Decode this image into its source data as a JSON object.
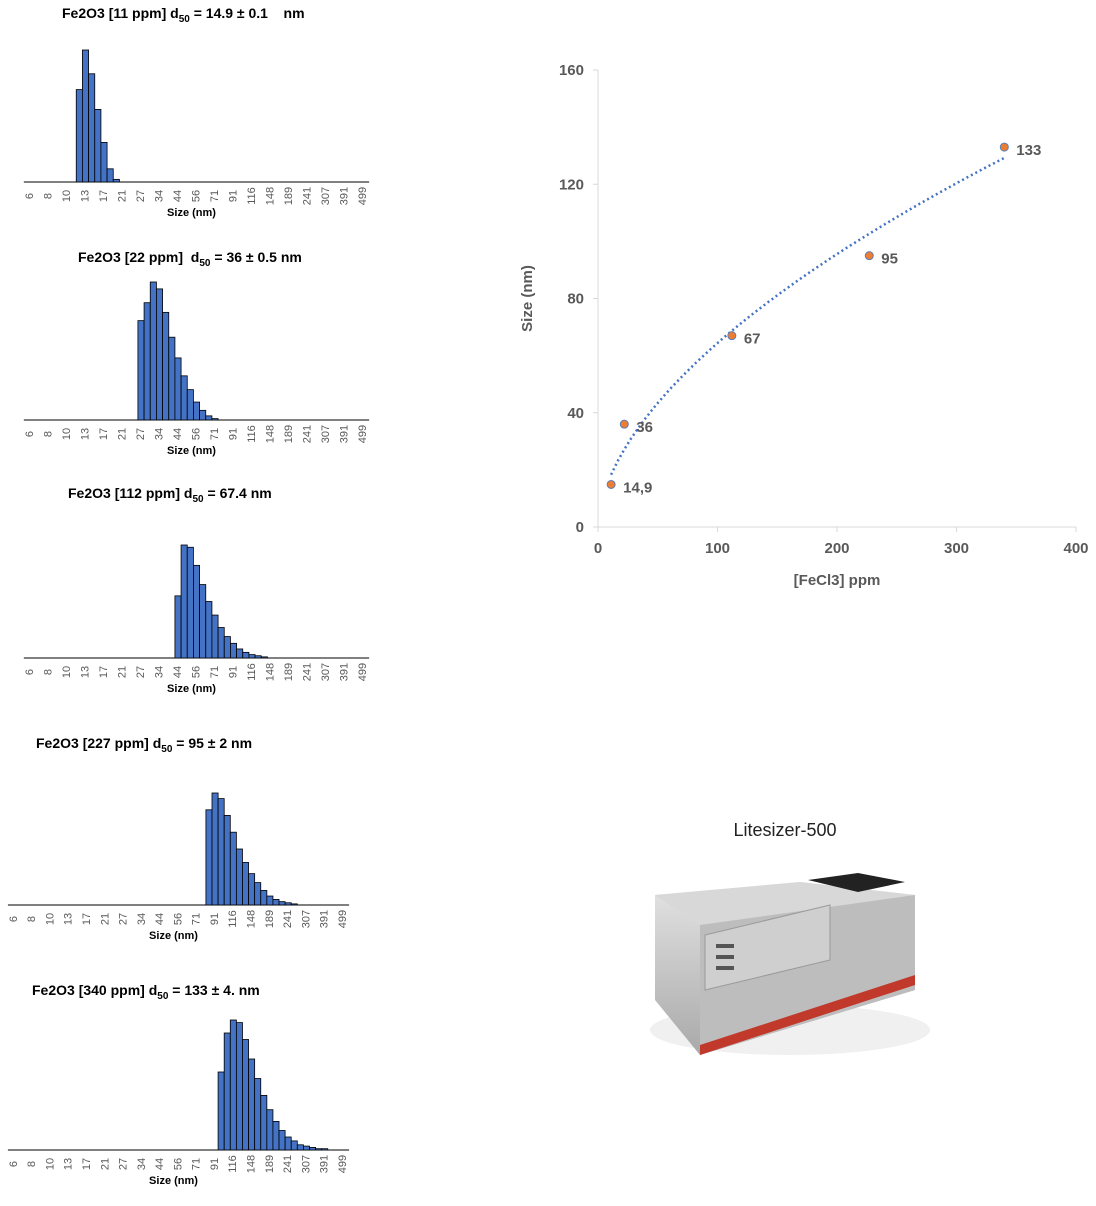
{
  "chart_data": [
    {
      "type": "bar",
      "title": "Fe2O3 [11 ppm] d",
      "title_subscript": "50",
      "title_end": " = 14.9 ± 0.1    nm",
      "xlabel": "Size (nm)",
      "color": "#4472c4",
      "categories": [
        "6",
        null,
        null,
        "8",
        null,
        null,
        "10",
        null,
        null,
        "13",
        null,
        null,
        "17",
        null,
        null,
        "21",
        null,
        null,
        "27",
        null,
        null,
        "34",
        null,
        null,
        "44",
        null,
        null,
        "56",
        null,
        null,
        "71",
        null,
        null,
        "91",
        null,
        null,
        "116",
        null,
        null,
        "148",
        null,
        null,
        "189",
        null,
        null,
        "241",
        null,
        null,
        "307",
        null,
        null,
        "391",
        null,
        null,
        "499"
      ],
      "values": [
        0,
        0,
        0,
        0,
        0,
        0,
        0,
        0,
        70,
        100,
        82,
        55,
        30,
        10,
        2,
        0,
        0,
        0,
        0,
        0,
        0,
        0,
        0,
        0,
        0,
        0,
        0,
        0,
        0,
        0,
        0,
        0,
        0,
        0,
        0,
        0,
        0,
        0,
        0,
        0,
        0,
        0,
        0,
        0,
        0,
        0,
        0,
        0,
        0,
        0,
        0,
        0,
        0,
        0,
        0
      ]
    },
    {
      "type": "bar",
      "title": "Fe2O3 [22 ppm]  d",
      "title_subscript": "50",
      "title_end": " = 36 ± 0.5 nm",
      "xlabel": "Size (nm)",
      "color": "#4472c4",
      "categories": [
        "6",
        null,
        null,
        "8",
        null,
        null,
        "10",
        null,
        null,
        "13",
        null,
        null,
        "17",
        null,
        null,
        "21",
        null,
        null,
        "27",
        null,
        null,
        "34",
        null,
        null,
        "44",
        null,
        null,
        "56",
        null,
        null,
        "71",
        null,
        null,
        "91",
        null,
        null,
        "116",
        null,
        null,
        "148",
        null,
        null,
        "189",
        null,
        null,
        "241",
        null,
        null,
        "307",
        null,
        null,
        "391",
        null,
        null,
        "499"
      ],
      "values": [
        0,
        0,
        0,
        0,
        0,
        0,
        0,
        0,
        0,
        0,
        0,
        0,
        0,
        0,
        0,
        0,
        0,
        0,
        72,
        85,
        100,
        95,
        78,
        60,
        45,
        32,
        22,
        13,
        7,
        3,
        1,
        0,
        0,
        0,
        0,
        0,
        0,
        0,
        0,
        0,
        0,
        0,
        0,
        0,
        0,
        0,
        0,
        0,
        0,
        0,
        0,
        0,
        0,
        0,
        0
      ]
    },
    {
      "type": "bar",
      "title": "Fe2O3 [112 ppm] d",
      "title_subscript": "50",
      "title_end": " = 67.4 nm",
      "xlabel": "Size (nm)",
      "color": "#4472c4",
      "categories": [
        "6",
        null,
        null,
        "8",
        null,
        null,
        "10",
        null,
        null,
        "13",
        null,
        null,
        "17",
        null,
        null,
        "21",
        null,
        null,
        "27",
        null,
        null,
        "34",
        null,
        null,
        "44",
        null,
        null,
        "56",
        null,
        null,
        "71",
        null,
        null,
        "91",
        null,
        null,
        "116",
        null,
        null,
        "148",
        null,
        null,
        "189",
        null,
        null,
        "241",
        null,
        null,
        "307",
        null,
        null,
        "391",
        null,
        null,
        "499"
      ],
      "values": [
        0,
        0,
        0,
        0,
        0,
        0,
        0,
        0,
        0,
        0,
        0,
        0,
        0,
        0,
        0,
        0,
        0,
        0,
        0,
        0,
        0,
        0,
        0,
        0,
        55,
        100,
        98,
        82,
        65,
        50,
        38,
        27,
        19,
        13,
        8,
        5,
        3,
        2,
        1,
        0,
        0,
        0,
        0,
        0,
        0,
        0,
        0,
        0,
        0,
        0,
        0,
        0,
        0,
        0,
        0
      ]
    },
    {
      "type": "bar",
      "title": "Fe2O3 [227 ppm] d",
      "title_subscript": "50",
      "title_end": " = 95 ± 2 nm",
      "xlabel": "Size (nm)",
      "color": "#4472c4",
      "categories": [
        "6",
        null,
        null,
        "8",
        null,
        null,
        "10",
        null,
        null,
        "13",
        null,
        null,
        "17",
        null,
        null,
        "21",
        null,
        null,
        "27",
        null,
        null,
        "34",
        null,
        null,
        "44",
        null,
        null,
        "56",
        null,
        null,
        "71",
        null,
        null,
        "91",
        null,
        null,
        "116",
        null,
        null,
        "148",
        null,
        null,
        "189",
        null,
        null,
        "241",
        null,
        null,
        "307",
        null,
        null,
        "391",
        null,
        null,
        "499"
      ],
      "values": [
        0,
        0,
        0,
        0,
        0,
        0,
        0,
        0,
        0,
        0,
        0,
        0,
        0,
        0,
        0,
        0,
        0,
        0,
        0,
        0,
        0,
        0,
        0,
        0,
        0,
        0,
        0,
        0,
        0,
        0,
        0,
        0,
        85,
        100,
        95,
        80,
        65,
        50,
        38,
        28,
        20,
        13,
        8,
        5,
        3,
        2,
        1,
        0,
        0,
        0,
        0,
        0,
        0,
        0,
        0
      ]
    },
    {
      "type": "bar",
      "title": "Fe2O3 [340 ppm] d",
      "title_subscript": "50",
      "title_end": " = 133 ± 4. nm",
      "xlabel": "Size (nm)",
      "color": "#4472c4",
      "categories": [
        "6",
        null,
        null,
        "8",
        null,
        null,
        "10",
        null,
        null,
        "13",
        null,
        null,
        "17",
        null,
        null,
        "21",
        null,
        null,
        "27",
        null,
        null,
        "34",
        null,
        null,
        "44",
        null,
        null,
        "56",
        null,
        null,
        "71",
        null,
        null,
        "91",
        null,
        null,
        "116",
        null,
        null,
        "148",
        null,
        null,
        "189",
        null,
        null,
        "241",
        null,
        null,
        "307",
        null,
        null,
        "391",
        null,
        null,
        "499"
      ],
      "values": [
        0,
        0,
        0,
        0,
        0,
        0,
        0,
        0,
        0,
        0,
        0,
        0,
        0,
        0,
        0,
        0,
        0,
        0,
        0,
        0,
        0,
        0,
        0,
        0,
        0,
        0,
        0,
        0,
        0,
        0,
        0,
        0,
        0,
        0,
        60,
        90,
        100,
        98,
        85,
        70,
        55,
        42,
        31,
        22,
        15,
        10,
        7,
        4,
        3,
        2,
        1,
        1,
        0,
        0,
        0
      ]
    },
    {
      "type": "scatter",
      "xlabel": "[FeCl3] ppm",
      "ylabel": "Size (nm)",
      "color": "#ed7d31",
      "trendline": "power",
      "trend_color": "#4472c4",
      "x": [
        11,
        22,
        112,
        227,
        340
      ],
      "values": [
        14.9,
        36,
        67,
        95,
        133
      ],
      "value_labels": [
        "14,9",
        "36",
        "67",
        "95",
        "133"
      ],
      "xlim": [
        0,
        400
      ],
      "xticks": [
        0,
        100,
        200,
        300,
        400
      ],
      "ylim": [
        0,
        160
      ],
      "yticks": [
        0,
        40,
        80,
        120,
        160
      ]
    }
  ],
  "photo": {
    "caption": "Litesizer-500"
  }
}
